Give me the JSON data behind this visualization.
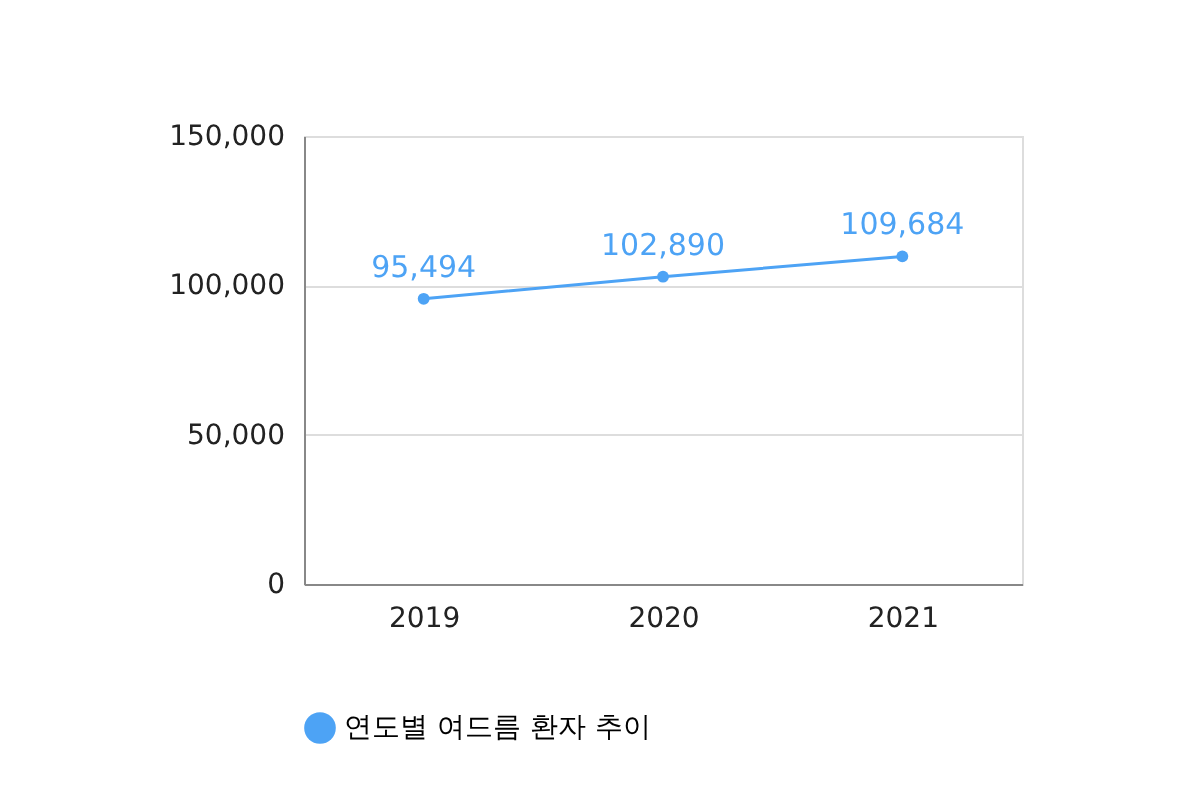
{
  "chart_data": {
    "type": "line",
    "categories": [
      "2019",
      "2020",
      "2021"
    ],
    "series": [
      {
        "name": "연도별 여드름 환자 추이",
        "color": "#4da3f5",
        "values": [
          95494,
          102890,
          109684
        ],
        "value_labels": [
          "95,494",
          "102,890",
          "109,684"
        ]
      }
    ],
    "ylim": [
      0,
      150000
    ],
    "yticks": [
      {
        "value": 0,
        "label": "0"
      },
      {
        "value": 50000,
        "label": "50,000"
      },
      {
        "value": 100000,
        "label": "100,000"
      },
      {
        "value": 150000,
        "label": "150,000"
      }
    ],
    "grid": "y",
    "legend": "bottom",
    "marker": "circle"
  }
}
